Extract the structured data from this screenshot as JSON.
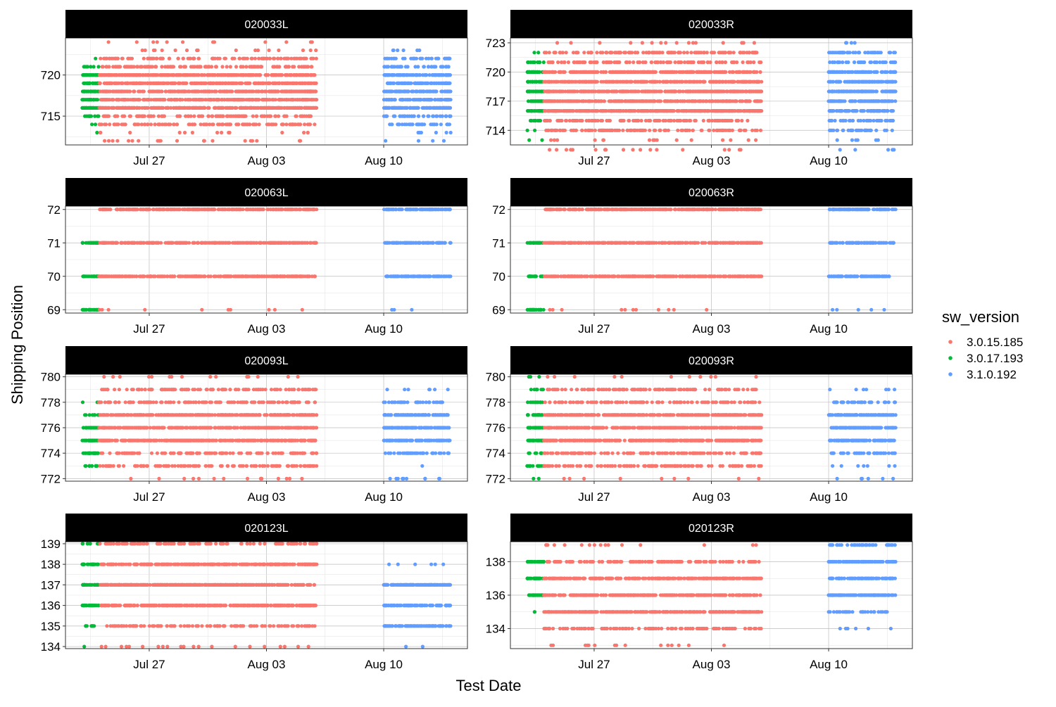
{
  "chart_data": {
    "type": "scatter",
    "title": "",
    "xlabel": "Test Date",
    "ylabel": "Shipping Position",
    "x_ticks": [
      "Jul 27",
      "Aug 03",
      "Aug 10"
    ],
    "x_range": [
      "2020-07-22",
      "2020-08-15"
    ],
    "grid": true,
    "legend": {
      "title": "sw_version",
      "placement": "right",
      "entries": [
        {
          "name": "3.0.15.185",
          "color": "#F8766D"
        },
        {
          "name": "3.0.17.193",
          "color": "#00BA38"
        },
        {
          "name": "3.1.0.192",
          "color": "#619CFF"
        }
      ]
    },
    "series_date_ranges": {
      "3.0.17.193": [
        "2020-07-23",
        "2020-07-24"
      ],
      "3.0.15.185": [
        "2020-07-24",
        "2020-08-06"
      ],
      "3.1.0.192": [
        "2020-08-10",
        "2020-08-14"
      ]
    },
    "panels": [
      {
        "name": "020033L",
        "ylim": [
          711.5,
          724.5
        ],
        "yticks": [
          715,
          720
        ],
        "levels": {
          "3.0.17.193": [
            713,
            714,
            715,
            716,
            717,
            718,
            719,
            720,
            721,
            722
          ],
          "3.0.15.185": [
            712,
            713,
            714,
            715,
            716,
            717,
            718,
            719,
            720,
            721,
            722,
            723,
            724
          ],
          "3.1.0.192": [
            712,
            713,
            714,
            715,
            716,
            717,
            718,
            719,
            720,
            721,
            722,
            723
          ]
        }
      },
      {
        "name": "020033R",
        "ylim": [
          712.5,
          723.5
        ],
        "yticks": [
          714,
          717,
          720,
          723
        ],
        "levels": {
          "3.0.17.193": [
            713,
            714,
            715,
            716,
            717,
            718,
            719,
            720,
            721,
            722
          ],
          "3.0.15.185": [
            712,
            713,
            714,
            715,
            716,
            717,
            718,
            719,
            720,
            721,
            722,
            723
          ],
          "3.1.0.192": [
            712,
            713,
            714,
            715,
            716,
            717,
            718,
            719,
            720,
            721,
            722,
            723
          ]
        }
      },
      {
        "name": "020063L",
        "ylim": [
          68.9,
          72.1
        ],
        "yticks": [
          69,
          70,
          71,
          72
        ],
        "levels": {
          "3.0.17.193": [
            69,
            70,
            71
          ],
          "3.0.15.185": [
            69,
            70,
            71,
            72
          ],
          "3.1.0.192": [
            69,
            70,
            71,
            72
          ]
        }
      },
      {
        "name": "020063R",
        "ylim": [
          68.9,
          72.1
        ],
        "yticks": [
          69,
          70,
          71,
          72
        ],
        "levels": {
          "3.0.17.193": [
            69,
            70,
            71
          ],
          "3.0.15.185": [
            69,
            70,
            71,
            72
          ],
          "3.1.0.192": [
            69,
            70,
            71,
            72
          ]
        }
      },
      {
        "name": "020093L",
        "ylim": [
          771.8,
          780.2
        ],
        "yticks": [
          772,
          774,
          776,
          778,
          780
        ],
        "levels": {
          "3.0.17.193": [
            772,
            773,
            774,
            775,
            776,
            777,
            778
          ],
          "3.0.15.185": [
            772,
            773,
            774,
            775,
            776,
            777,
            778,
            779,
            780
          ],
          "3.1.0.192": [
            772,
            773,
            774,
            775,
            776,
            777,
            778,
            779
          ]
        }
      },
      {
        "name": "020093R",
        "ylim": [
          771.8,
          780.2
        ],
        "yticks": [
          772,
          774,
          776,
          778,
          780
        ],
        "levels": {
          "3.0.17.193": [
            772,
            773,
            774,
            775,
            776,
            777,
            778,
            779,
            780
          ],
          "3.0.15.185": [
            772,
            773,
            774,
            775,
            776,
            777,
            778,
            779,
            780
          ],
          "3.1.0.192": [
            772,
            773,
            774,
            775,
            776,
            777,
            778,
            779
          ]
        }
      },
      {
        "name": "020123L",
        "ylim": [
          133.9,
          139.1
        ],
        "yticks": [
          134,
          135,
          136,
          137,
          138,
          139
        ],
        "levels": {
          "3.0.17.193": [
            134,
            135,
            136,
            137,
            138,
            139
          ],
          "3.0.15.185": [
            134,
            135,
            136,
            137,
            138,
            139
          ],
          "3.1.0.192": [
            134,
            135,
            136,
            137,
            138
          ]
        }
      },
      {
        "name": "020123R",
        "ylim": [
          132.8,
          139.2
        ],
        "yticks": [
          134,
          136,
          138
        ],
        "levels": {
          "3.0.17.193": [
            135,
            136,
            137,
            138
          ],
          "3.0.15.185": [
            133,
            134,
            135,
            136,
            137,
            138,
            139
          ],
          "3.1.0.192": [
            134,
            135,
            136,
            137,
            138,
            139
          ]
        }
      }
    ]
  }
}
